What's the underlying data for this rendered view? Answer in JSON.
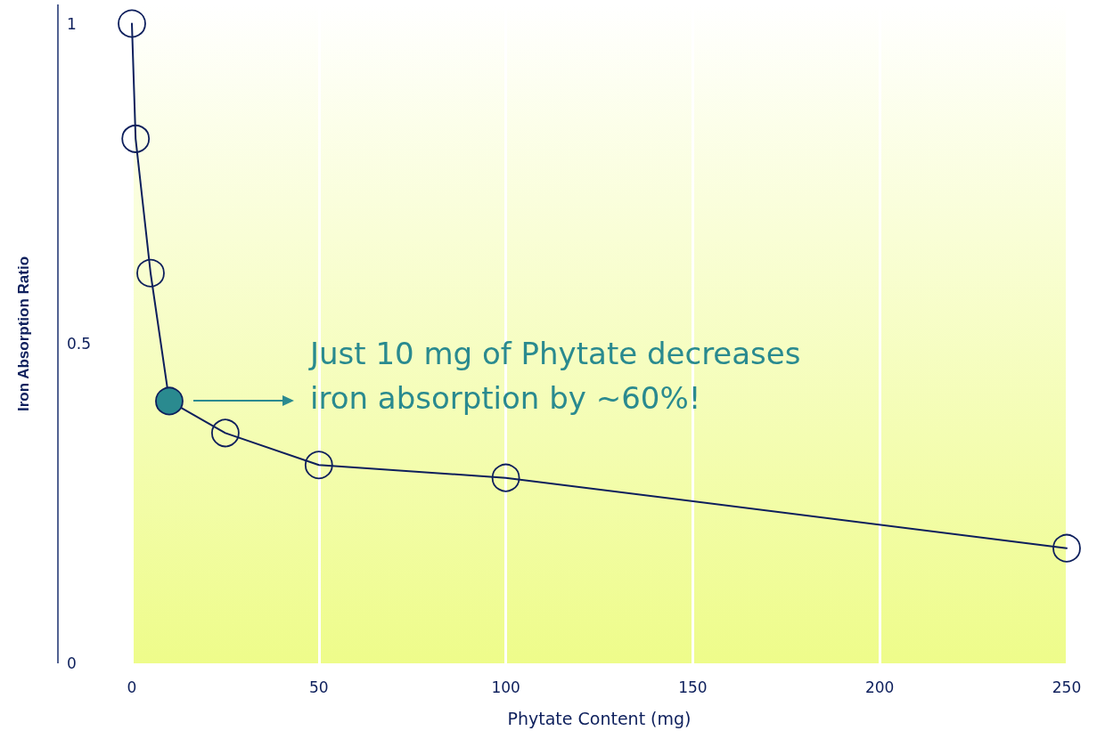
{
  "chart_data": {
    "type": "line",
    "xlabel": "Phytate Content (mg)",
    "ylabel": "Iron Absorption Ratio",
    "x": [
      0,
      1,
      5,
      10,
      25,
      50,
      100,
      250
    ],
    "series": [
      {
        "color": "#0d1f5c",
        "values": [
          1,
          0.82,
          0.61,
          0.41,
          0.36,
          0.31,
          0.29,
          0.18
        ],
        "colors": [
          null,
          null,
          null,
          "#2a8a8f",
          null,
          null,
          null,
          null
        ]
      }
    ],
    "xlim": [
      0,
      250
    ],
    "xticks": [
      0,
      50,
      100,
      150,
      200,
      250
    ],
    "ylim": [
      0,
      1.03
    ],
    "yticks": [
      0,
      0.5,
      1
    ],
    "grid": "x",
    "marker": "circle",
    "line_style": "solid",
    "annotations": [
      "Just 10 mg of Phytate decreases iron absorption by ~60%!"
    ]
  }
}
